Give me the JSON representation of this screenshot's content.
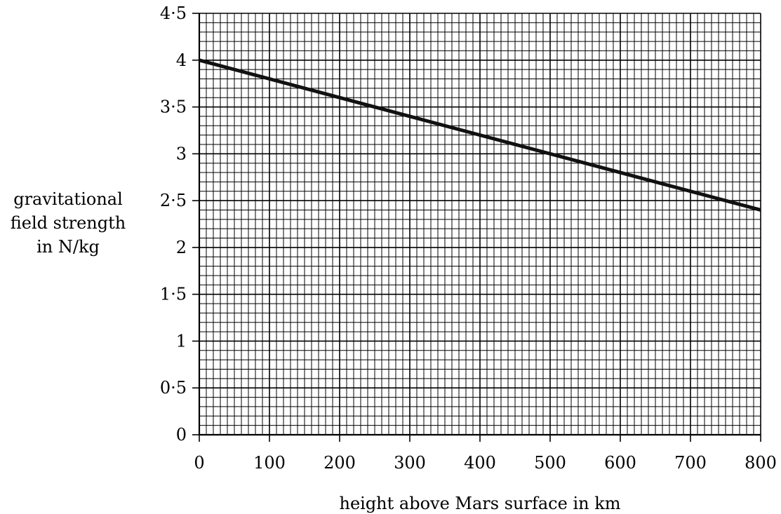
{
  "chart_data": {
    "type": "line",
    "title": "",
    "xlabel": "height above Mars surface in km",
    "ylabel": [
      "gravitational",
      "field strength",
      "in N/kg"
    ],
    "xlim": [
      0,
      800
    ],
    "ylim": [
      0,
      4.5
    ],
    "grid": true,
    "x_ticks": [
      {
        "value": 0,
        "label": "0"
      },
      {
        "value": 100,
        "label": "100"
      },
      {
        "value": 200,
        "label": "200"
      },
      {
        "value": 300,
        "label": "300"
      },
      {
        "value": 400,
        "label": "400"
      },
      {
        "value": 500,
        "label": "500"
      },
      {
        "value": 600,
        "label": "600"
      },
      {
        "value": 700,
        "label": "700"
      },
      {
        "value": 800,
        "label": "800"
      }
    ],
    "y_ticks": [
      {
        "value": 0,
        "label": "0"
      },
      {
        "value": 0.5,
        "label": "0·5"
      },
      {
        "value": 1,
        "label": "1"
      },
      {
        "value": 1.5,
        "label": "1·5"
      },
      {
        "value": 2,
        "label": "2"
      },
      {
        "value": 2.5,
        "label": "2·5"
      },
      {
        "value": 3,
        "label": "3"
      },
      {
        "value": 3.5,
        "label": "3·5"
      },
      {
        "value": 4,
        "label": "4"
      },
      {
        "value": 4.5,
        "label": "4·5"
      }
    ],
    "series": [
      {
        "x": [
          0,
          800
        ],
        "y": [
          4.0,
          2.4
        ],
        "color": "#111111"
      }
    ]
  }
}
